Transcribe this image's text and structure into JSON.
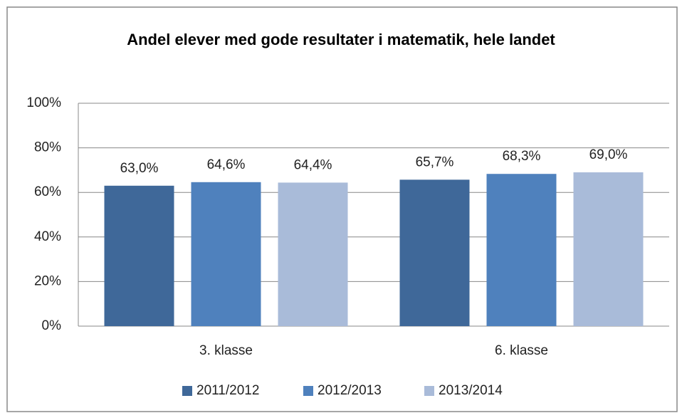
{
  "chart_data": {
    "type": "bar",
    "title": "Andel elever med gode resultater i matematik, hele landet",
    "categories": [
      "3. klasse",
      "6. klasse"
    ],
    "series": [
      {
        "name": "2011/2012",
        "color": "#3f6899",
        "values": [
          63.0,
          65.7
        ],
        "value_labels": [
          "63,0%",
          "65,7%"
        ]
      },
      {
        "name": "2012/2013",
        "color": "#4f81bd",
        "values": [
          64.6,
          68.3
        ],
        "value_labels": [
          "64,6%",
          "68,3%"
        ]
      },
      {
        "name": "2013/2014",
        "color": "#a9bbd9",
        "values": [
          64.4,
          69.0
        ],
        "value_labels": [
          "64,4%",
          "69,0%"
        ]
      }
    ],
    "ylim": [
      0,
      100
    ],
    "yticks": [
      {
        "value": 0,
        "label": "0%"
      },
      {
        "value": 20,
        "label": "20%"
      },
      {
        "value": 40,
        "label": "40%"
      },
      {
        "value": 60,
        "label": "60%"
      },
      {
        "value": 80,
        "label": "80%"
      },
      {
        "value": 100,
        "label": "100%"
      }
    ],
    "grid": true,
    "legend": "bottom"
  }
}
